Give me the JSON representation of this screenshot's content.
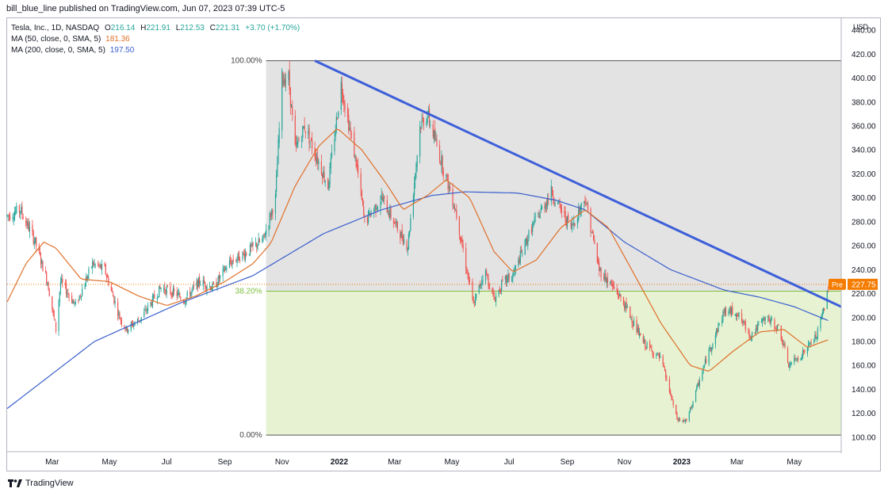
{
  "header": {
    "published_text": "bill_blue_line published on TradingView.com, Jun 07, 2023 07:39 UTC-5"
  },
  "legend": {
    "symbol": "Tesla, Inc., 1D, NASDAQ",
    "o_label": "O",
    "o_value": "216.14",
    "h_label": "H",
    "h_value": "221.91",
    "l_label": "L",
    "l_value": "212.53",
    "c_label": "C",
    "c_value": "221.31",
    "change": "+3.70 (+1.70%)",
    "ma50_label": "MA (50, close, 0, SMA, 5)",
    "ma50_value": "181.36",
    "ma200_label": "MA (200, close, 0, SMA, 5)",
    "ma200_value": "197.50"
  },
  "footer": {
    "brand": "TradingView"
  },
  "colors": {
    "up": "#26a69a",
    "down": "#ef5350",
    "ma50": "#e0702a",
    "ma200": "#3a5fcd",
    "trendline": "#3d5fd9",
    "fib_zone_top": "#e3e3e3",
    "fib_zone_bottom": "#e6f2d2",
    "fib_mid_line": "#7fbf3f",
    "pre_badge": "#f57c00"
  },
  "chart_data": {
    "type": "candlestick",
    "title": "Tesla, Inc., 1D, NASDAQ",
    "currency_label": "USD",
    "ylim": [
      88,
      450
    ],
    "y_ticks": [
      100,
      120,
      140,
      160,
      180,
      200,
      220,
      240,
      260,
      280,
      300,
      320,
      340,
      360,
      380,
      400,
      420,
      440
    ],
    "x_range": [
      "2021-01-12",
      "2023-06-20"
    ],
    "x_ticks": [
      {
        "date": "2021-03-01",
        "label": "Mar",
        "bold": false
      },
      {
        "date": "2021-05-01",
        "label": "May",
        "bold": false
      },
      {
        "date": "2021-07-01",
        "label": "Jul",
        "bold": false
      },
      {
        "date": "2021-09-01",
        "label": "Sep",
        "bold": false
      },
      {
        "date": "2021-11-01",
        "label": "Nov",
        "bold": false
      },
      {
        "date": "2022-01-01",
        "label": "2022",
        "bold": true
      },
      {
        "date": "2022-03-01",
        "label": "Mar",
        "bold": false
      },
      {
        "date": "2022-05-01",
        "label": "May",
        "bold": false
      },
      {
        "date": "2022-07-01",
        "label": "Jul",
        "bold": false
      },
      {
        "date": "2022-09-01",
        "label": "Sep",
        "bold": false
      },
      {
        "date": "2022-11-01",
        "label": "Nov",
        "bold": false
      },
      {
        "date": "2023-01-01",
        "label": "2023",
        "bold": true
      },
      {
        "date": "2023-03-01",
        "label": "Mar",
        "bold": false
      },
      {
        "date": "2023-05-01",
        "label": "May",
        "bold": false
      }
    ],
    "fib_retracement": {
      "start_date": "2021-10-15",
      "end_date": "2023-06-20",
      "levels": [
        {
          "label": "100.00%",
          "price": 414.5
        },
        {
          "label": "38.20%",
          "price": 222.0
        },
        {
          "label": "0.00%",
          "price": 101.8
        }
      ]
    },
    "trendline": {
      "start": [
        "2021-12-06",
        414.5
      ],
      "end": [
        "2023-06-20",
        209
      ]
    },
    "pre_market": {
      "label": "Pre",
      "value": "227.75",
      "price": 227.75
    },
    "last_close": 221.31,
    "price_anchors": [
      [
        "2021-01-12",
        285
      ],
      [
        "2021-01-26",
        290
      ],
      [
        "2021-02-10",
        265
      ],
      [
        "2021-02-24",
        230
      ],
      [
        "2021-03-05",
        190
      ],
      [
        "2021-03-10",
        230
      ],
      [
        "2021-03-26",
        210
      ],
      [
        "2021-04-13",
        245
      ],
      [
        "2021-04-26",
        240
      ],
      [
        "2021-05-12",
        200
      ],
      [
        "2021-05-19",
        190
      ],
      [
        "2021-06-04",
        200
      ],
      [
        "2021-06-25",
        225
      ],
      [
        "2021-07-10",
        220
      ],
      [
        "2021-07-20",
        215
      ],
      [
        "2021-08-05",
        230
      ],
      [
        "2021-08-20",
        225
      ],
      [
        "2021-09-05",
        245
      ],
      [
        "2021-09-25",
        255
      ],
      [
        "2021-10-12",
        265
      ],
      [
        "2021-10-25",
        300
      ],
      [
        "2021-11-01",
        400
      ],
      [
        "2021-11-08",
        400
      ],
      [
        "2021-11-15",
        340
      ],
      [
        "2021-11-25",
        360
      ],
      [
        "2021-12-10",
        330
      ],
      [
        "2021-12-20",
        310
      ],
      [
        "2022-01-03",
        395
      ],
      [
        "2022-01-20",
        325
      ],
      [
        "2022-01-28",
        280
      ],
      [
        "2022-02-15",
        300
      ],
      [
        "2022-03-07",
        270
      ],
      [
        "2022-03-15",
        260
      ],
      [
        "2022-03-28",
        360
      ],
      [
        "2022-04-05",
        370
      ],
      [
        "2022-04-20",
        330
      ],
      [
        "2022-05-05",
        290
      ],
      [
        "2022-05-24",
        210
      ],
      [
        "2022-06-05",
        240
      ],
      [
        "2022-06-15",
        215
      ],
      [
        "2022-06-25",
        230
      ],
      [
        "2022-07-05",
        235
      ],
      [
        "2022-07-25",
        275
      ],
      [
        "2022-08-15",
        305
      ],
      [
        "2022-08-25",
        290
      ],
      [
        "2022-09-05",
        275
      ],
      [
        "2022-09-20",
        300
      ],
      [
        "2022-10-05",
        240
      ],
      [
        "2022-10-25",
        220
      ],
      [
        "2022-11-05",
        205
      ],
      [
        "2022-11-20",
        180
      ],
      [
        "2022-12-10",
        165
      ],
      [
        "2022-12-27",
        115
      ],
      [
        "2023-01-06",
        113
      ],
      [
        "2023-01-27",
        165
      ],
      [
        "2023-02-15",
        205
      ],
      [
        "2023-02-28",
        205
      ],
      [
        "2023-03-15",
        185
      ],
      [
        "2023-04-01",
        200
      ],
      [
        "2023-04-15",
        190
      ],
      [
        "2023-04-25",
        160
      ],
      [
        "2023-05-10",
        170
      ],
      [
        "2023-05-25",
        185
      ],
      [
        "2023-06-06",
        221.3
      ]
    ],
    "ma50_anchors": [
      [
        "2021-01-12",
        213
      ],
      [
        "2021-02-01",
        245
      ],
      [
        "2021-02-20",
        263
      ],
      [
        "2021-03-05",
        258
      ],
      [
        "2021-04-01",
        232
      ],
      [
        "2021-05-01",
        230
      ],
      [
        "2021-06-01",
        218
      ],
      [
        "2021-07-01",
        210
      ],
      [
        "2021-08-01",
        218
      ],
      [
        "2021-09-01",
        230
      ],
      [
        "2021-10-01",
        245
      ],
      [
        "2021-10-20",
        262
      ],
      [
        "2021-11-15",
        310
      ],
      [
        "2021-12-10",
        343
      ],
      [
        "2021-12-30",
        358
      ],
      [
        "2022-01-25",
        340
      ],
      [
        "2022-02-20",
        312
      ],
      [
        "2022-03-10",
        290
      ],
      [
        "2022-04-05",
        302
      ],
      [
        "2022-04-25",
        315
      ],
      [
        "2022-05-20",
        300
      ],
      [
        "2022-06-15",
        255
      ],
      [
        "2022-07-05",
        238
      ],
      [
        "2022-07-30",
        248
      ],
      [
        "2022-08-25",
        275
      ],
      [
        "2022-09-20",
        290
      ],
      [
        "2022-10-15",
        275
      ],
      [
        "2022-11-10",
        238
      ],
      [
        "2022-12-10",
        195
      ],
      [
        "2023-01-10",
        160
      ],
      [
        "2023-01-30",
        155
      ],
      [
        "2023-02-25",
        172
      ],
      [
        "2023-03-25",
        188
      ],
      [
        "2023-04-20",
        190
      ],
      [
        "2023-05-15",
        175
      ],
      [
        "2023-06-06",
        181.4
      ]
    ],
    "ma200_anchors": [
      [
        "2021-01-12",
        124
      ],
      [
        "2021-04-15",
        180
      ],
      [
        "2021-07-15",
        212
      ],
      [
        "2021-10-01",
        235
      ],
      [
        "2021-12-15",
        270
      ],
      [
        "2022-02-15",
        290
      ],
      [
        "2022-04-10",
        302
      ],
      [
        "2022-05-15",
        305
      ],
      [
        "2022-07-10",
        304
      ],
      [
        "2022-08-20",
        298
      ],
      [
        "2022-09-20",
        290
      ],
      [
        "2022-11-01",
        263
      ],
      [
        "2022-12-20",
        240
      ],
      [
        "2023-02-15",
        223
      ],
      [
        "2023-03-25",
        217
      ],
      [
        "2023-05-01",
        209
      ],
      [
        "2023-06-06",
        197.5
      ]
    ]
  }
}
